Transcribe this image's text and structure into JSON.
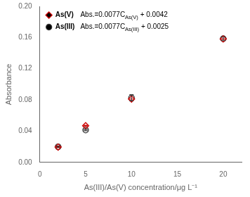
{
  "chart_data": {
    "type": "scatter",
    "x": [
      2,
      5,
      10,
      20
    ],
    "series": [
      {
        "name": "As(V)",
        "color": "#cc0000",
        "marker": "diamond",
        "values": [
          0.0196,
          0.047,
          0.0812,
          0.1582
        ],
        "errors": [
          0.0005,
          0.0005,
          0.0,
          0.0
        ],
        "annotation": [
          {
            "text": "Abs.=0.0077C"
          },
          {
            "text": "As(V)",
            "subscript": true
          },
          {
            "text": " + 0.0042"
          }
        ]
      },
      {
        "name": "As(III)",
        "color": "#333333",
        "marker": "circle",
        "values": [
          0.02,
          0.0415,
          0.0827,
          0.1585
        ],
        "errors": [
          0.001,
          0.001,
          0.004,
          0.002
        ],
        "annotation": [
          {
            "text": "Abs.=0.0077C"
          },
          {
            "text": "As(III)",
            "subscript": true
          },
          {
            "text": " + 0.0025"
          }
        ]
      }
    ],
    "xlabel": "As(III)/As(V) concentration/μg L⁻¹",
    "ylabel": "Absorbance",
    "xlim": [
      0,
      22
    ],
    "ylim": [
      0,
      0.2
    ],
    "xticks": [
      0,
      5,
      10,
      15,
      20
    ],
    "yticks": [
      {
        "value": 0,
        "label": "0.00"
      },
      0.04,
      0.08,
      0.12,
      0.16,
      {
        "value": 0.2,
        "label": "0.20"
      }
    ],
    "grid": false,
    "legend": "upper left"
  }
}
